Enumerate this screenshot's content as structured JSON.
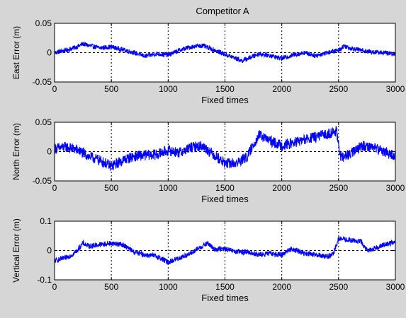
{
  "figure": {
    "background": "#d6d6d6",
    "axes_background": "#ffffff",
    "line_color": "#0000ff",
    "grid_color": "#000000"
  },
  "chart_data": [
    {
      "type": "line",
      "title": "Competitor A",
      "xlabel": "Fixed times",
      "ylabel": "East    Error (m)",
      "xlim": [
        0,
        3000
      ],
      "ylim": [
        -0.05,
        0.05
      ],
      "xticks": [
        "0",
        "500",
        "1000",
        "1500",
        "2000",
        "2500",
        "3000"
      ],
      "yticks": [
        "-0.05",
        "0",
        "0.05"
      ],
      "grid": "dotted vertical at x ticks, dashed zero line",
      "series": [
        {
          "color": "#0000ff",
          "x": [
            0,
            100,
            200,
            250,
            300,
            400,
            500,
            600,
            700,
            800,
            900,
            1000,
            1100,
            1200,
            1300,
            1400,
            1500,
            1600,
            1650,
            1700,
            1800,
            1900,
            2000,
            2100,
            2200,
            2300,
            2400,
            2500,
            2550,
            2600,
            2700,
            2800,
            2900,
            3000
          ],
          "y": [
            0.0,
            0.004,
            0.01,
            0.015,
            0.012,
            0.008,
            0.01,
            0.005,
            0.0,
            -0.006,
            -0.002,
            -0.004,
            0.004,
            0.01,
            0.012,
            0.005,
            -0.003,
            -0.01,
            -0.014,
            -0.01,
            -0.002,
            -0.005,
            -0.01,
            -0.004,
            0.0,
            -0.005,
            0.0,
            0.004,
            0.012,
            0.008,
            0.004,
            0.001,
            0.0,
            -0.003
          ],
          "noise": 0.004
        }
      ]
    },
    {
      "type": "line",
      "title": "",
      "xlabel": "Fixed times",
      "ylabel": "North    Error (m)",
      "xlim": [
        0,
        3000
      ],
      "ylim": [
        -0.05,
        0.05
      ],
      "xticks": [
        "0",
        "500",
        "1000",
        "1500",
        "2000",
        "2500",
        "3000"
      ],
      "yticks": [
        "-0.05",
        "0",
        "0.05"
      ],
      "grid": "dotted vertical at x ticks, dashed zero line",
      "series": [
        {
          "color": "#0000ff",
          "x": [
            0,
            100,
            200,
            300,
            400,
            500,
            600,
            700,
            800,
            900,
            1000,
            1100,
            1200,
            1300,
            1400,
            1500,
            1600,
            1700,
            1750,
            1800,
            1900,
            2000,
            2100,
            2200,
            2300,
            2400,
            2480,
            2500,
            2520,
            2600,
            2700,
            2800,
            2900,
            3000
          ],
          "y": [
            0.005,
            0.008,
            0.003,
            -0.008,
            -0.015,
            -0.025,
            -0.015,
            -0.008,
            -0.006,
            -0.005,
            0.002,
            -0.002,
            0.007,
            0.01,
            -0.005,
            -0.02,
            -0.02,
            -0.008,
            0.012,
            0.028,
            0.018,
            0.01,
            0.015,
            0.02,
            0.025,
            0.03,
            0.035,
            0.01,
            -0.01,
            -0.005,
            0.01,
            0.008,
            0.0,
            -0.008
          ],
          "noise": 0.009
        }
      ]
    },
    {
      "type": "line",
      "title": "",
      "xlabel": "Fixed times",
      "ylabel": "Vertical Error (m)",
      "xlim": [
        0,
        3000
      ],
      "ylim": [
        -0.1,
        0.1
      ],
      "xticks": [
        "0",
        "500",
        "1000",
        "1500",
        "2000",
        "2500",
        "3000"
      ],
      "yticks": [
        "-0.1",
        "0",
        "0.1"
      ],
      "grid": "dotted vertical at x ticks, dashed zero line",
      "series": [
        {
          "color": "#0000ff",
          "x": [
            0,
            100,
            150,
            200,
            250,
            300,
            400,
            500,
            600,
            700,
            800,
            900,
            1000,
            1100,
            1200,
            1300,
            1350,
            1400,
            1500,
            1600,
            1700,
            1800,
            1900,
            2000,
            2050,
            2100,
            2200,
            2300,
            2400,
            2450,
            2500,
            2600,
            2700,
            2750,
            2800,
            2900,
            3000
          ],
          "y": [
            -0.035,
            -0.025,
            -0.015,
            0.0,
            0.025,
            0.015,
            0.02,
            0.025,
            0.02,
            -0.005,
            -0.015,
            -0.02,
            -0.04,
            -0.025,
            -0.01,
            0.015,
            0.025,
            0.005,
            0.005,
            -0.005,
            -0.005,
            -0.015,
            -0.01,
            -0.015,
            0.0,
            0.005,
            -0.01,
            -0.015,
            -0.02,
            -0.015,
            0.04,
            0.035,
            0.03,
            0.0,
            0.005,
            0.02,
            0.028
          ],
          "noise": 0.009
        }
      ]
    }
  ]
}
